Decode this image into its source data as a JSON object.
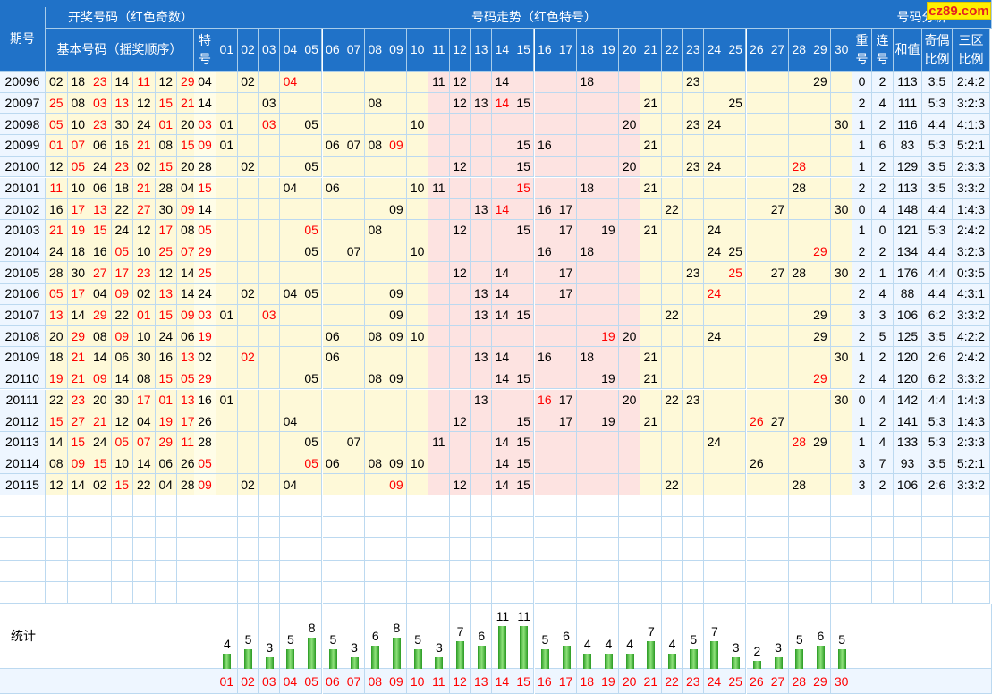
{
  "header": {
    "period": "期号",
    "draw_group": "开奖号码（红色奇数）",
    "base_numbers": "基本号码（摇奖顺序）",
    "special_l1": "特",
    "special_l2": "号",
    "trend_group": "号码走势（红色特号）",
    "analysis_group": "号码分析",
    "repeat_l1": "重",
    "repeat_l2": "号",
    "consec_l1": "连",
    "consec_l2": "号",
    "sum": "和值",
    "oddeven_l1": "奇偶",
    "oddeven_l2": "比例",
    "zones_l1": "三区",
    "zones_l2": "比例",
    "numbers": [
      "01",
      "02",
      "03",
      "04",
      "05",
      "06",
      "07",
      "08",
      "09",
      "10",
      "11",
      "12",
      "13",
      "14",
      "15",
      "16",
      "17",
      "18",
      "19",
      "20",
      "21",
      "22",
      "23",
      "24",
      "25",
      "26",
      "27",
      "28",
      "29",
      "30"
    ]
  },
  "logo_text": "cz89.com",
  "stats_label": "统计",
  "colors": {
    "header": "#2072c8",
    "odd": "#ff0000",
    "yellow": "#fef9d8",
    "pink": "#fde3e1",
    "blank": "#ffffff",
    "grid": "#bcd9f0",
    "bar": "#3aa832"
  },
  "rows": [
    {
      "period": "20096",
      "base": [
        "02",
        "18",
        "23",
        "14",
        "11",
        "12",
        "29"
      ],
      "special": "04",
      "trend": [
        [
          "02",
          0
        ],
        [
          "04",
          1
        ],
        [
          "11",
          0
        ],
        [
          "12",
          0
        ],
        [
          "14",
          0
        ],
        [
          "18",
          0
        ],
        [
          "23",
          0
        ],
        [
          "29",
          0
        ]
      ],
      "repeat": "0",
      "consec": "2",
      "sum": "113",
      "oddeven": "3:5",
      "zones": "2:4:2"
    },
    {
      "period": "20097",
      "base": [
        "25",
        "08",
        "03",
        "13",
        "12",
        "15",
        "21"
      ],
      "special": "14",
      "trend": [
        [
          "03",
          0
        ],
        [
          "08",
          0
        ],
        [
          "12",
          0
        ],
        [
          "13",
          0
        ],
        [
          "14",
          1
        ],
        [
          "15",
          0
        ],
        [
          "21",
          0
        ],
        [
          "25",
          0
        ]
      ],
      "repeat": "2",
      "consec": "4",
      "sum": "111",
      "oddeven": "5:3",
      "zones": "3:2:3"
    },
    {
      "period": "20098",
      "base": [
        "05",
        "10",
        "23",
        "30",
        "24",
        "01",
        "20"
      ],
      "special": "03",
      "trend": [
        [
          "01",
          0
        ],
        [
          "03",
          1
        ],
        [
          "05",
          0
        ],
        [
          "10",
          0
        ],
        [
          "20",
          0
        ],
        [
          "23",
          0
        ],
        [
          "24",
          0
        ],
        [
          "30",
          0
        ]
      ],
      "repeat": "1",
      "consec": "2",
      "sum": "116",
      "oddeven": "4:4",
      "zones": "4:1:3"
    },
    {
      "period": "20099",
      "base": [
        "01",
        "07",
        "06",
        "16",
        "21",
        "08",
        "15"
      ],
      "special": "09",
      "trend": [
        [
          "01",
          0
        ],
        [
          "06",
          0
        ],
        [
          "07",
          0
        ],
        [
          "08",
          0
        ],
        [
          "09",
          1
        ],
        [
          "15",
          0
        ],
        [
          "16",
          0
        ],
        [
          "21",
          0
        ]
      ],
      "repeat": "1",
      "consec": "6",
      "sum": "83",
      "oddeven": "5:3",
      "zones": "5:2:1"
    },
    {
      "period": "20100",
      "base": [
        "12",
        "05",
        "24",
        "23",
        "02",
        "15",
        "20"
      ],
      "special": "28",
      "trend": [
        [
          "02",
          0
        ],
        [
          "05",
          0
        ],
        [
          "12",
          0
        ],
        [
          "15",
          0
        ],
        [
          "20",
          0
        ],
        [
          "23",
          0
        ],
        [
          "24",
          0
        ],
        [
          "28",
          1
        ]
      ],
      "repeat": "1",
      "consec": "2",
      "sum": "129",
      "oddeven": "3:5",
      "zones": "2:3:3"
    },
    {
      "period": "20101",
      "base": [
        "11",
        "10",
        "06",
        "18",
        "21",
        "28",
        "04"
      ],
      "special": "15",
      "trend": [
        [
          "04",
          0
        ],
        [
          "06",
          0
        ],
        [
          "10",
          0
        ],
        [
          "11",
          0
        ],
        [
          "15",
          1
        ],
        [
          "18",
          0
        ],
        [
          "21",
          0
        ],
        [
          "28",
          0
        ]
      ],
      "repeat": "2",
      "consec": "2",
      "sum": "113",
      "oddeven": "3:5",
      "zones": "3:3:2"
    },
    {
      "period": "20102",
      "base": [
        "16",
        "17",
        "13",
        "22",
        "27",
        "30",
        "09"
      ],
      "special": "14",
      "trend": [
        [
          "09",
          0
        ],
        [
          "13",
          0
        ],
        [
          "14",
          1
        ],
        [
          "16",
          0
        ],
        [
          "17",
          0
        ],
        [
          "22",
          0
        ],
        [
          "27",
          0
        ],
        [
          "30",
          0
        ]
      ],
      "repeat": "0",
      "consec": "4",
      "sum": "148",
      "oddeven": "4:4",
      "zones": "1:4:3"
    },
    {
      "period": "20103",
      "base": [
        "21",
        "19",
        "15",
        "24",
        "12",
        "17",
        "08"
      ],
      "special": "05",
      "trend": [
        [
          "05",
          1
        ],
        [
          "08",
          0
        ],
        [
          "12",
          0
        ],
        [
          "15",
          0
        ],
        [
          "17",
          0
        ],
        [
          "19",
          0
        ],
        [
          "21",
          0
        ],
        [
          "24",
          0
        ]
      ],
      "repeat": "1",
      "consec": "0",
      "sum": "121",
      "oddeven": "5:3",
      "zones": "2:4:2"
    },
    {
      "period": "20104",
      "base": [
        "24",
        "18",
        "16",
        "05",
        "10",
        "25",
        "07"
      ],
      "special": "29",
      "trend": [
        [
          "05",
          0
        ],
        [
          "07",
          0
        ],
        [
          "10",
          0
        ],
        [
          "16",
          0
        ],
        [
          "18",
          0
        ],
        [
          "24",
          0
        ],
        [
          "25",
          0
        ],
        [
          "29",
          1
        ]
      ],
      "repeat": "2",
      "consec": "2",
      "sum": "134",
      "oddeven": "4:4",
      "zones": "3:2:3"
    },
    {
      "period": "20105",
      "base": [
        "28",
        "30",
        "27",
        "17",
        "23",
        "12",
        "14"
      ],
      "special": "25",
      "trend": [
        [
          "12",
          0
        ],
        [
          "14",
          0
        ],
        [
          "17",
          0
        ],
        [
          "23",
          0
        ],
        [
          "25",
          1
        ],
        [
          "27",
          0
        ],
        [
          "28",
          0
        ],
        [
          "30",
          0
        ]
      ],
      "repeat": "2",
      "consec": "1",
      "sum": "176",
      "oddeven": "4:4",
      "zones": "0:3:5"
    },
    {
      "period": "20106",
      "base": [
        "05",
        "17",
        "04",
        "09",
        "02",
        "13",
        "14"
      ],
      "special": "24",
      "trend": [
        [
          "02",
          0
        ],
        [
          "04",
          0
        ],
        [
          "05",
          0
        ],
        [
          "09",
          0
        ],
        [
          "13",
          0
        ],
        [
          "14",
          0
        ],
        [
          "17",
          0
        ],
        [
          "24",
          1
        ]
      ],
      "repeat": "2",
      "consec": "4",
      "sum": "88",
      "oddeven": "4:4",
      "zones": "4:3:1"
    },
    {
      "period": "20107",
      "base": [
        "13",
        "14",
        "29",
        "22",
        "01",
        "15",
        "09"
      ],
      "special": "03",
      "trend": [
        [
          "01",
          0
        ],
        [
          "03",
          1
        ],
        [
          "09",
          0
        ],
        [
          "13",
          0
        ],
        [
          "14",
          0
        ],
        [
          "15",
          0
        ],
        [
          "22",
          0
        ],
        [
          "29",
          0
        ]
      ],
      "repeat": "3",
      "consec": "3",
      "sum": "106",
      "oddeven": "6:2",
      "zones": "3:3:2"
    },
    {
      "period": "20108",
      "base": [
        "20",
        "29",
        "08",
        "09",
        "10",
        "24",
        "06"
      ],
      "special": "19",
      "trend": [
        [
          "06",
          0
        ],
        [
          "08",
          0
        ],
        [
          "09",
          0
        ],
        [
          "10",
          0
        ],
        [
          "19",
          1
        ],
        [
          "20",
          0
        ],
        [
          "24",
          0
        ],
        [
          "29",
          0
        ]
      ],
      "repeat": "2",
      "consec": "5",
      "sum": "125",
      "oddeven": "3:5",
      "zones": "4:2:2"
    },
    {
      "period": "20109",
      "base": [
        "18",
        "21",
        "14",
        "06",
        "30",
        "16",
        "13"
      ],
      "special": "02",
      "trend": [
        [
          "02",
          1
        ],
        [
          "06",
          0
        ],
        [
          "13",
          0
        ],
        [
          "14",
          0
        ],
        [
          "16",
          0
        ],
        [
          "18",
          0
        ],
        [
          "21",
          0
        ],
        [
          "30",
          0
        ]
      ],
      "repeat": "1",
      "consec": "2",
      "sum": "120",
      "oddeven": "2:6",
      "zones": "2:4:2"
    },
    {
      "period": "20110",
      "base": [
        "19",
        "21",
        "09",
        "14",
        "08",
        "15",
        "05"
      ],
      "special": "29",
      "trend": [
        [
          "05",
          0
        ],
        [
          "08",
          0
        ],
        [
          "09",
          0
        ],
        [
          "14",
          0
        ],
        [
          "15",
          0
        ],
        [
          "19",
          0
        ],
        [
          "21",
          0
        ],
        [
          "29",
          1
        ]
      ],
      "repeat": "2",
      "consec": "4",
      "sum": "120",
      "oddeven": "6:2",
      "zones": "3:3:2"
    },
    {
      "period": "20111",
      "base": [
        "22",
        "23",
        "20",
        "30",
        "17",
        "01",
        "13"
      ],
      "special": "16",
      "trend": [
        [
          "01",
          0
        ],
        [
          "13",
          0
        ],
        [
          "16",
          1
        ],
        [
          "17",
          0
        ],
        [
          "20",
          0
        ],
        [
          "22",
          0
        ],
        [
          "23",
          0
        ],
        [
          "30",
          0
        ]
      ],
      "repeat": "0",
      "consec": "4",
      "sum": "142",
      "oddeven": "4:4",
      "zones": "1:4:3"
    },
    {
      "period": "20112",
      "base": [
        "15",
        "27",
        "21",
        "12",
        "04",
        "19",
        "17"
      ],
      "special": "26",
      "trend": [
        [
          "04",
          0
        ],
        [
          "12",
          0
        ],
        [
          "15",
          0
        ],
        [
          "17",
          0
        ],
        [
          "19",
          0
        ],
        [
          "21",
          0
        ],
        [
          "26",
          1
        ],
        [
          "27",
          0
        ]
      ],
      "repeat": "1",
      "consec": "2",
      "sum": "141",
      "oddeven": "5:3",
      "zones": "1:4:3"
    },
    {
      "period": "20113",
      "base": [
        "14",
        "15",
        "24",
        "05",
        "07",
        "29",
        "11"
      ],
      "special": "28",
      "trend": [
        [
          "05",
          0
        ],
        [
          "07",
          0
        ],
        [
          "11",
          0
        ],
        [
          "14",
          0
        ],
        [
          "15",
          0
        ],
        [
          "24",
          0
        ],
        [
          "28",
          1
        ],
        [
          "29",
          0
        ]
      ],
      "repeat": "1",
      "consec": "4",
      "sum": "133",
      "oddeven": "5:3",
      "zones": "2:3:3"
    },
    {
      "period": "20114",
      "base": [
        "08",
        "09",
        "15",
        "10",
        "14",
        "06",
        "26"
      ],
      "special": "05",
      "trend": [
        [
          "05",
          1
        ],
        [
          "06",
          0
        ],
        [
          "08",
          0
        ],
        [
          "09",
          0
        ],
        [
          "10",
          0
        ],
        [
          "14",
          0
        ],
        [
          "15",
          0
        ],
        [
          "26",
          0
        ]
      ],
      "repeat": "3",
      "consec": "7",
      "sum": "93",
      "oddeven": "3:5",
      "zones": "5:2:1"
    },
    {
      "period": "20115",
      "base": [
        "12",
        "14",
        "02",
        "15",
        "22",
        "04",
        "28"
      ],
      "special": "09",
      "trend": [
        [
          "02",
          0
        ],
        [
          "04",
          0
        ],
        [
          "09",
          1
        ],
        [
          "12",
          0
        ],
        [
          "14",
          0
        ],
        [
          "15",
          0
        ],
        [
          "22",
          0
        ],
        [
          "28",
          0
        ]
      ],
      "repeat": "3",
      "consec": "2",
      "sum": "106",
      "oddeven": "2:6",
      "zones": "3:3:2"
    }
  ],
  "chart_data": {
    "type": "bar",
    "categories": [
      "01",
      "02",
      "03",
      "04",
      "05",
      "06",
      "07",
      "08",
      "09",
      "10",
      "11",
      "12",
      "13",
      "14",
      "15",
      "16",
      "17",
      "18",
      "19",
      "20",
      "21",
      "22",
      "23",
      "24",
      "25",
      "26",
      "27",
      "28",
      "29",
      "30"
    ],
    "values": [
      4,
      5,
      3,
      5,
      8,
      5,
      3,
      6,
      8,
      5,
      3,
      7,
      6,
      11,
      11,
      5,
      6,
      4,
      4,
      4,
      7,
      4,
      5,
      7,
      3,
      2,
      3,
      5,
      6,
      5
    ],
    "title": "统计",
    "xlabel": "",
    "ylabel": "",
    "ylim": [
      0,
      11
    ]
  }
}
